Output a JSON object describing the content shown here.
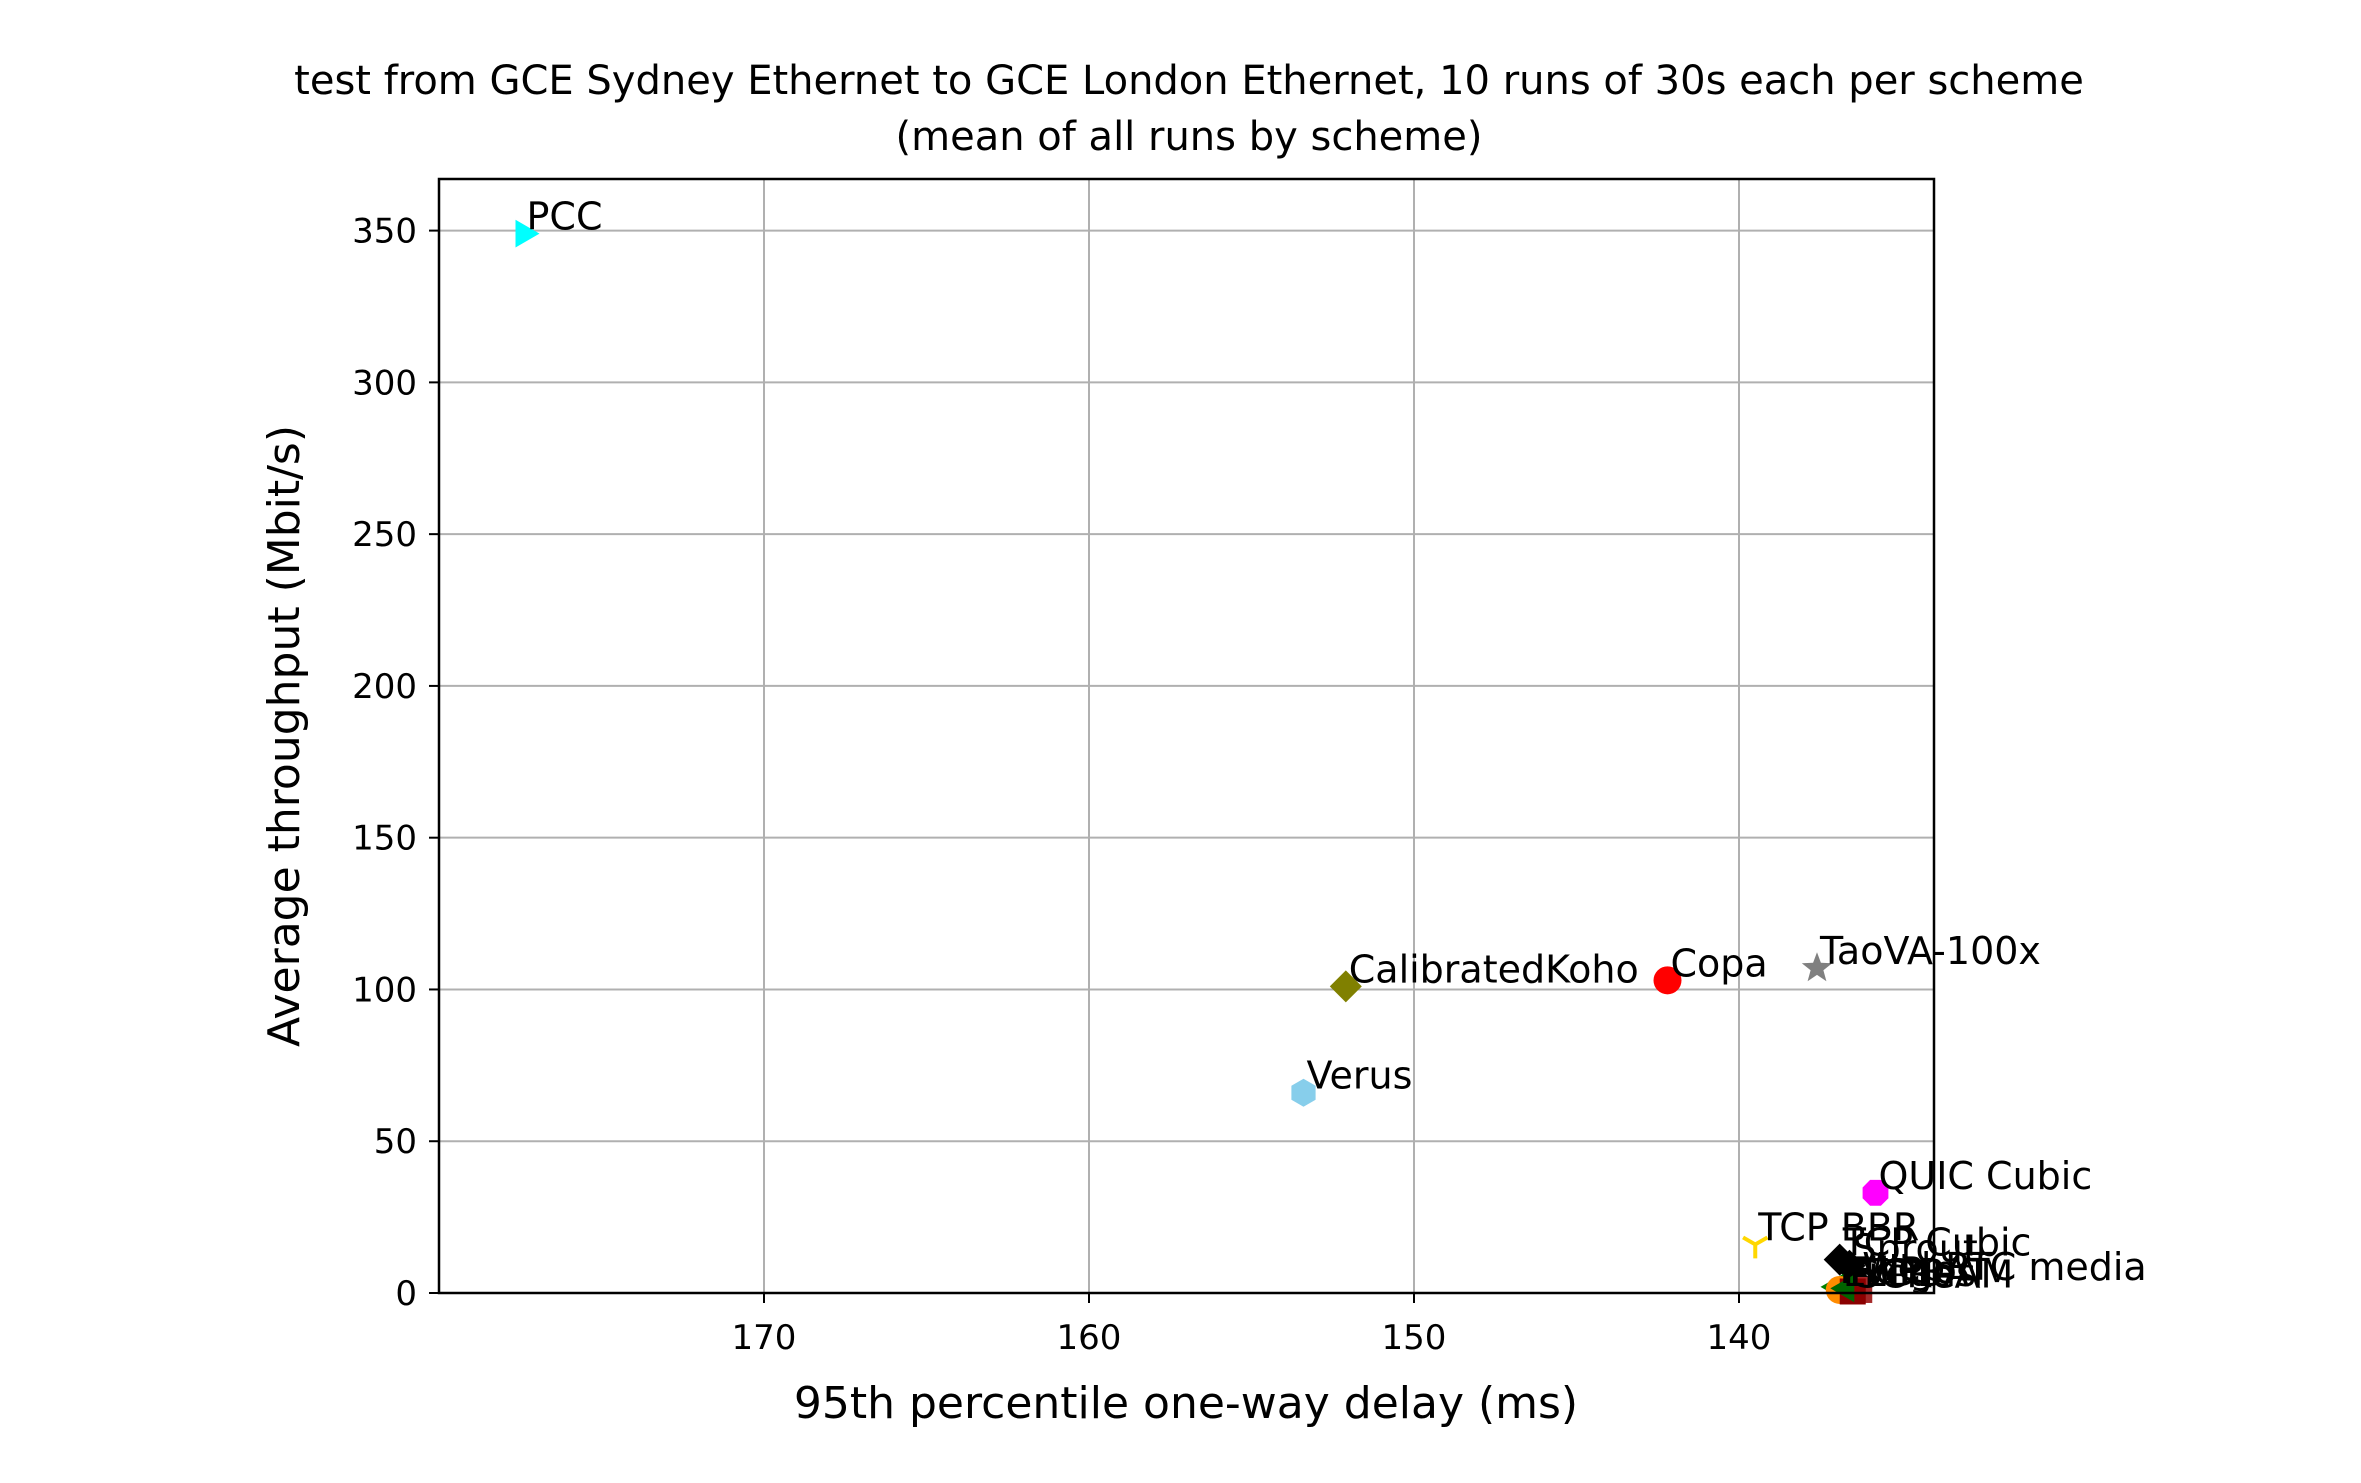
{
  "chart_data": {
    "type": "scatter",
    "title": "test from GCE Sydney Ethernet to GCE London Ethernet, 10 runs of 30s each per scheme",
    "subtitle": "(mean of all runs by scheme)",
    "xlabel": "95th percentile one-way delay (ms)",
    "ylabel": "Average throughput (Mbit/s)",
    "x_inverted": true,
    "xlim": [
      180,
      134
    ],
    "ylim": [
      0,
      367
    ],
    "xticks": [
      170,
      160,
      150,
      140
    ],
    "yticks": [
      0,
      50,
      100,
      150,
      200,
      250,
      300,
      350
    ],
    "grid": true,
    "points": [
      {
        "name": "PCC",
        "x": 177.4,
        "y": 349,
        "color": "#00ffff",
        "marker": "triangle-right"
      },
      {
        "name": "CalibratedKoho",
        "x": 152.1,
        "y": 101,
        "color": "#808000",
        "marker": "diamond"
      },
      {
        "name": "Copa",
        "x": 142.2,
        "y": 103,
        "color": "#ff0000",
        "marker": "circle"
      },
      {
        "name": "TaoVA-100x",
        "x": 137.6,
        "y": 107,
        "color": "#808080",
        "marker": "star"
      },
      {
        "name": "Verus",
        "x": 153.4,
        "y": 66,
        "color": "#87ceeb",
        "marker": "hexagon"
      },
      {
        "name": "QUIC Cubic",
        "x": 135.8,
        "y": 33,
        "color": "#ff00ff",
        "marker": "octagon"
      },
      {
        "name": "TCP BBR",
        "x": 139.5,
        "y": 16,
        "color": "#ffd700",
        "marker": "tri-down"
      },
      {
        "name": "TCP Cubic",
        "x": 136.9,
        "y": 11,
        "color": "#000000",
        "marker": "diamond"
      },
      {
        "name": "Sprout",
        "x": 136.6,
        "y": 9,
        "color": "#000000",
        "marker": "diamond"
      },
      {
        "name": "WebRTC media",
        "x": 136.3,
        "y": 3,
        "color": "#000000",
        "marker": "diamond"
      },
      {
        "name": "Indigo",
        "x": 137.0,
        "y": 2,
        "color": "#008000",
        "marker": "triangle-left"
      },
      {
        "name": "LEDBAT",
        "x": 136.9,
        "y": 1,
        "color": "#ff8c00",
        "marker": "circle"
      },
      {
        "name": "Vegas",
        "x": 136.3,
        "y": 1,
        "color": "#a52a2a",
        "marker": "square"
      },
      {
        "name": "SCReAM",
        "x": 136.5,
        "y": 0.5,
        "color": "#8b0000",
        "marker": "square"
      },
      {
        "name": "FillP",
        "x": 136.7,
        "y": 1.5,
        "color": "#006400",
        "marker": "triangle-left"
      }
    ]
  }
}
